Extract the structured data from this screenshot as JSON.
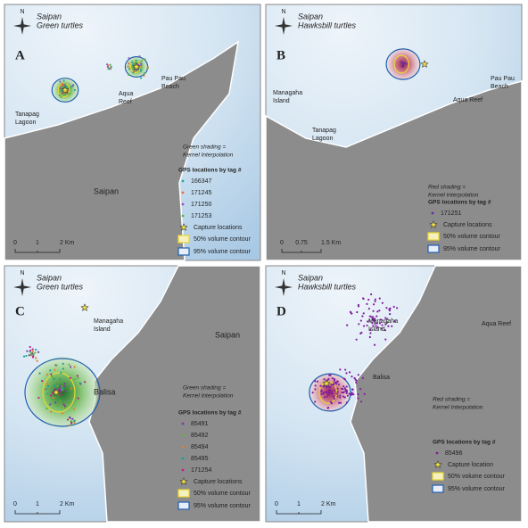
{
  "panels": [
    {
      "letter": "A",
      "compass": "N",
      "title": [
        "Saipan",
        "Green turtles"
      ],
      "places": [
        [
          "Tanapag",
          "Lagoon"
        ],
        [
          "Aqua",
          "Reef"
        ],
        [
          "Pau Pau",
          "Beach"
        ],
        [
          "Saipan"
        ]
      ],
      "shading_note": [
        "Green shading =",
        "Kernel Interpolation"
      ],
      "legend": {
        "heading": "GPS locations by tag #",
        "tags": [
          {
            "name": "166347",
            "color": "#2aa89a"
          },
          {
            "name": "171245",
            "color": "#e07040"
          },
          {
            "name": "171250",
            "color": "#8a5ac0"
          },
          {
            "name": "171253",
            "color": "#55b048"
          }
        ],
        "capture": "Capture locations",
        "contour_50": "50% volume contour",
        "contour_95": "95% volume contour"
      },
      "scale": [
        "0",
        "1",
        "2 Km"
      ]
    },
    {
      "letter": "B",
      "compass": "N",
      "title": [
        "Saipan",
        "Hawksbill turtles"
      ],
      "places": [
        [
          "Managaha",
          "Island"
        ],
        [
          "Tanapag",
          "Lagoon"
        ],
        [
          "Aqua Reef"
        ],
        [
          "Pau Pau",
          "Beach"
        ]
      ],
      "shading_note": [
        "Red shading =",
        "Kernel Interpolation"
      ],
      "legend": {
        "heading": "GPS locations by tag #",
        "tags": [
          {
            "name": "171251",
            "color": "#6030a0"
          }
        ],
        "capture": "Capture locations",
        "contour_50": "50% volume contour",
        "contour_95": "95% volume contour"
      },
      "scale": [
        "0",
        "0.75",
        "1.5 Km"
      ]
    },
    {
      "letter": "C",
      "compass": "N",
      "title": [
        "Saipan",
        "Green turtles"
      ],
      "places": [
        [
          "Managaha",
          "Island"
        ],
        [
          "Saipan"
        ],
        [
          "Balisa"
        ]
      ],
      "shading_note": [
        "Green shading =",
        "Kernel Interpolation"
      ],
      "legend": {
        "heading": "GPS locations by tag #",
        "tags": [
          {
            "name": "85491",
            "color": "#7a40a0"
          },
          {
            "name": "85492",
            "color": "#60b040"
          },
          {
            "name": "85494",
            "color": "#e08030"
          },
          {
            "name": "85495",
            "color": "#20a090"
          },
          {
            "name": "171254",
            "color": "#c02080"
          }
        ],
        "capture": "Capture locations",
        "contour_50": "50% volume contour",
        "contour_95": "95% volume contour"
      },
      "scale": [
        "0",
        "1",
        "2 Km"
      ]
    },
    {
      "letter": "D",
      "compass": "N",
      "title": [
        "Saipan",
        "Hawksbill turtles"
      ],
      "places": [
        [
          "Managaha",
          "Island"
        ],
        [
          "Aqua Reef"
        ],
        [
          "Balisa"
        ]
      ],
      "shading_note": [
        "Red shading =",
        "Kernel Interpolation"
      ],
      "legend": {
        "heading": "GPS locations by tag #",
        "tags": [
          {
            "name": "85496",
            "color": "#8020a0"
          }
        ],
        "capture": "Capture location",
        "contour_50": "50% volume contour",
        "contour_95": "95% volume contour"
      },
      "scale": [
        "0",
        "1",
        "2 Km"
      ]
    }
  ]
}
